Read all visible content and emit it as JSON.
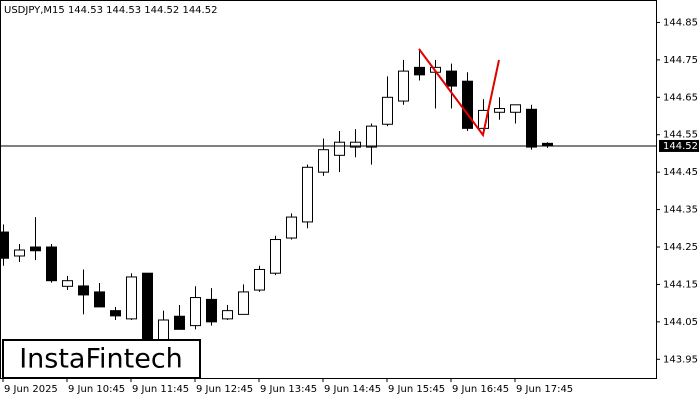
{
  "chart_data": {
    "type": "candlestick",
    "title": "USDJPY,M15  144.53 144.53 144.52 144.52",
    "watermark": "InstaFintech",
    "categories": [
      "9 Jun 2025",
      null,
      null,
      null,
      "9 Jun 10:45",
      null,
      null,
      null,
      "9 Jun 11:45",
      null,
      null,
      null,
      "9 Jun 12:45",
      null,
      null,
      null,
      "9 Jun 13:45",
      null,
      null,
      null,
      "9 Jun 14:45",
      null,
      null,
      null,
      "9 Jun 15:45",
      null,
      null,
      null,
      "9 Jun 16:45",
      null,
      null,
      null,
      "9 Jun 17:45",
      null,
      null
    ],
    "open": [
      144.29,
      144.226,
      144.25,
      144.25,
      144.145,
      144.146,
      144.13,
      144.08,
      144.058,
      144.18,
      143.99,
      144.065,
      144.04,
      144.11,
      144.058,
      144.07,
      144.135,
      144.18,
      144.274,
      144.317,
      144.45,
      144.495,
      144.517,
      144.517,
      144.578,
      144.64,
      144.73,
      144.717,
      144.72,
      144.693,
      144.567,
      144.61,
      144.61,
      144.618,
      144.527
    ],
    "high": [
      144.31,
      144.258,
      144.33,
      144.258,
      144.173,
      144.19,
      144.154,
      144.09,
      144.18,
      144.18,
      144.08,
      144.095,
      144.145,
      144.14,
      144.095,
      144.15,
      144.2,
      144.28,
      144.34,
      144.47,
      144.54,
      144.56,
      144.565,
      144.58,
      144.706,
      144.75,
      144.78,
      144.75,
      144.74,
      144.717,
      144.645,
      144.65,
      144.63,
      144.63,
      144.53
    ],
    "low": [
      144.2,
      144.21,
      144.215,
      144.155,
      144.135,
      144.07,
      144.09,
      144.055,
      144.055,
      143.98,
      143.98,
      144.03,
      144.03,
      144.04,
      144.055,
      144.07,
      144.13,
      144.175,
      144.27,
      144.3,
      144.44,
      144.45,
      144.49,
      144.47,
      144.573,
      144.63,
      144.695,
      144.62,
      144.62,
      144.56,
      144.55,
      144.59,
      144.58,
      144.51,
      144.515
    ],
    "close": [
      144.22,
      144.242,
      144.24,
      144.16,
      144.16,
      144.122,
      144.09,
      144.066,
      144.17,
      143.99,
      144.055,
      144.03,
      144.115,
      144.05,
      144.08,
      144.13,
      144.19,
      144.27,
      144.33,
      144.463,
      144.51,
      144.53,
      144.53,
      144.573,
      144.65,
      144.72,
      144.71,
      144.73,
      144.68,
      144.567,
      144.615,
      144.62,
      144.63,
      144.517,
      144.52
    ],
    "up_color": "#ffffff",
    "down_color": "#000000",
    "current_price": 144.52,
    "ylim": [
      143.9,
      144.91
    ],
    "yticks": [
      144.85,
      144.75,
      144.65,
      144.55,
      144.45,
      144.35,
      144.25,
      144.15,
      144.05,
      143.95
    ]
  }
}
